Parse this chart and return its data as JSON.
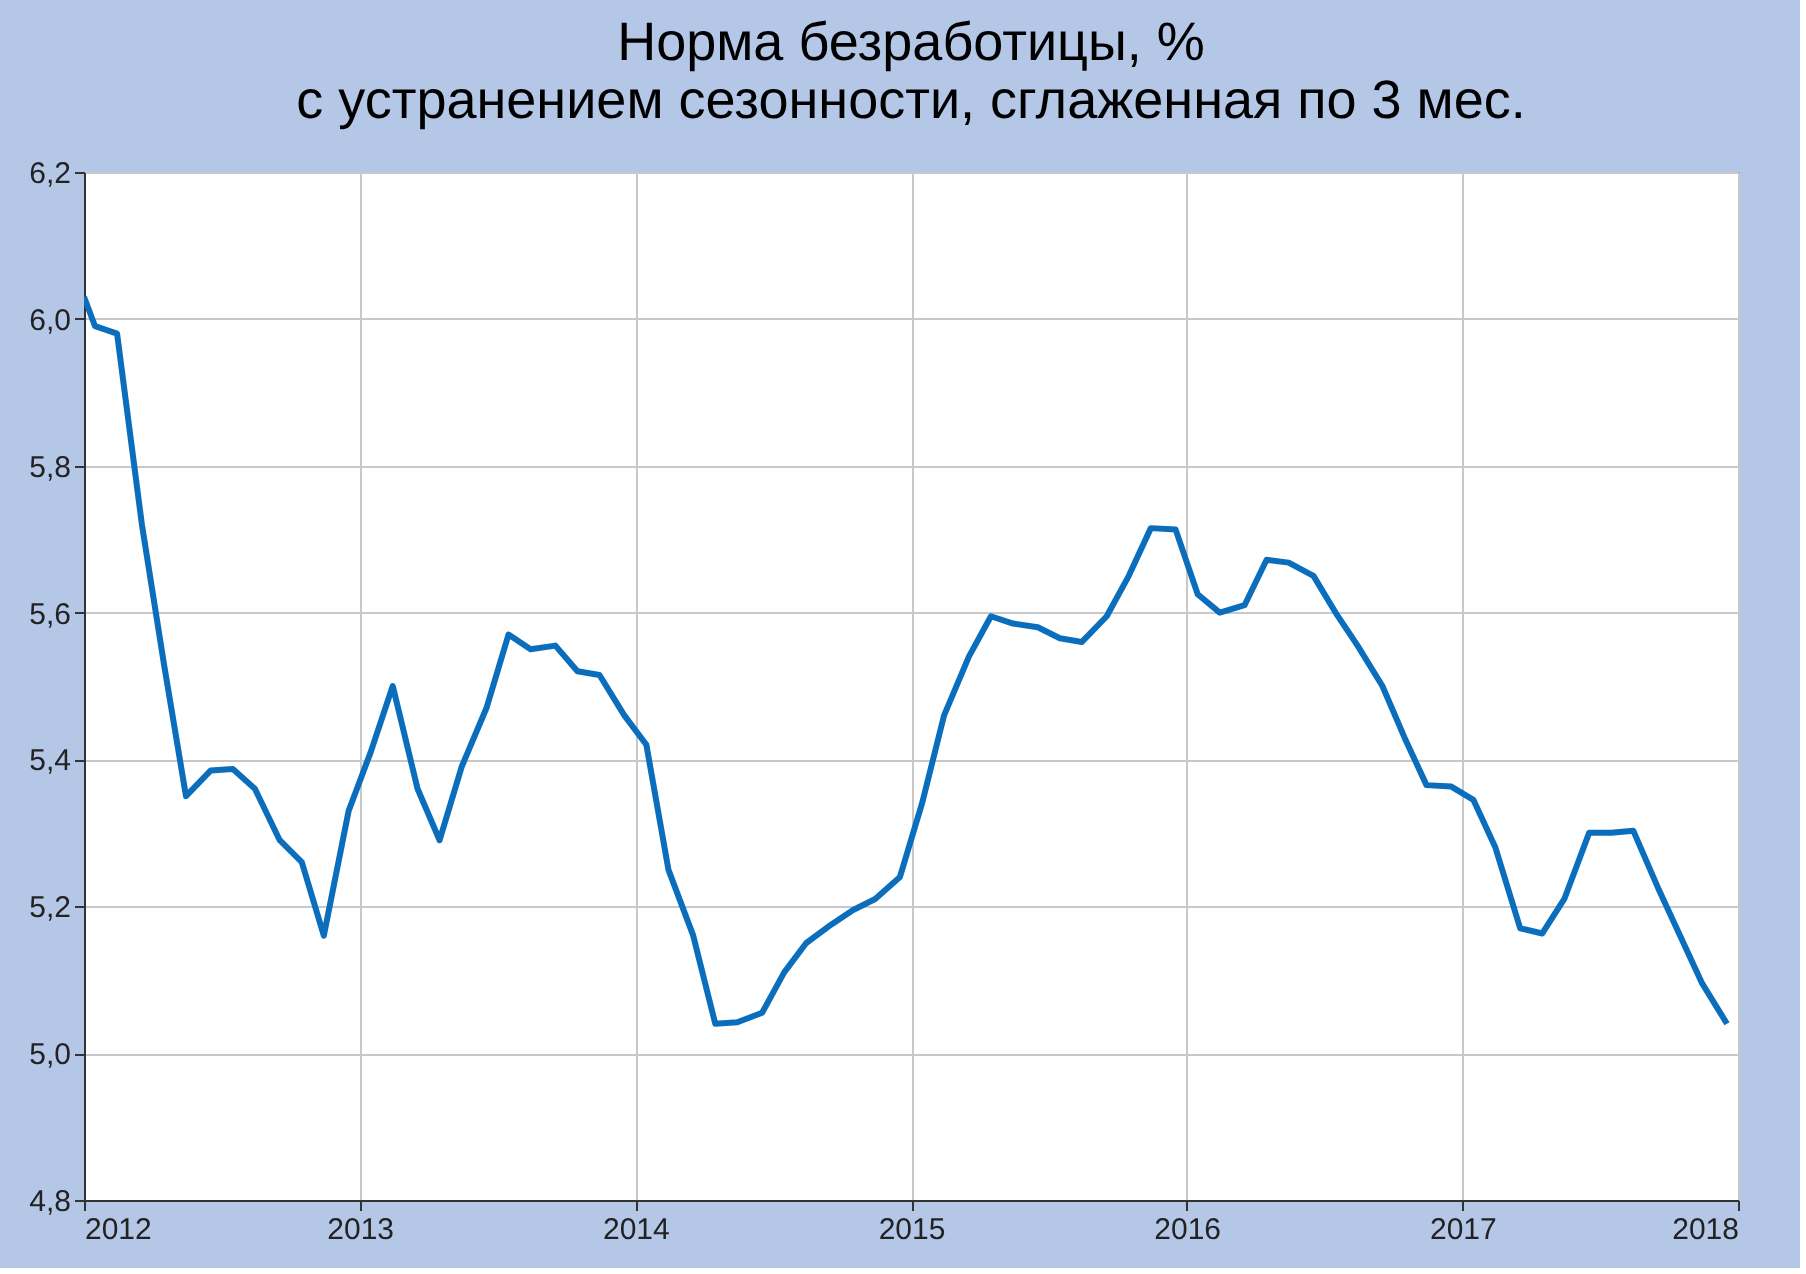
{
  "chart_data": {
    "type": "line",
    "title": [
      "Норма безработицы, %",
      "с устранением сезонности, сглаженная по 3 мес."
    ],
    "x": [
      2012.0,
      2012.04,
      2012.12,
      2012.21,
      2012.29,
      2012.37,
      2012.46,
      2012.54,
      2012.62,
      2012.71,
      2012.79,
      2012.87,
      2012.96,
      2013.04,
      2013.12,
      2013.21,
      2013.29,
      2013.37,
      2013.46,
      2013.54,
      2013.62,
      2013.71,
      2013.79,
      2013.87,
      2013.96,
      2014.04,
      2014.12,
      2014.21,
      2014.29,
      2014.37,
      2014.46,
      2014.54,
      2014.62,
      2014.71,
      2014.79,
      2014.87,
      2014.96,
      2015.04,
      2015.12,
      2015.21,
      2015.29,
      2015.37,
      2015.46,
      2015.54,
      2015.62,
      2015.71,
      2015.79,
      2015.87,
      2015.96,
      2016.04,
      2016.12,
      2016.21,
      2016.29,
      2016.37,
      2016.46,
      2016.54,
      2016.62,
      2016.71,
      2016.79,
      2016.87,
      2016.96,
      2017.04,
      2017.12,
      2017.21,
      2017.29,
      2017.37,
      2017.46,
      2017.54,
      2017.62,
      2017.71,
      2017.79,
      2017.87,
      2017.96
    ],
    "series": [
      {
        "color": "#0a6ebd",
        "values": [
          6.03,
          5.99,
          5.98,
          5.72,
          5.53,
          5.35,
          5.385,
          5.387,
          5.36,
          5.29,
          5.26,
          5.16,
          5.33,
          5.41,
          5.5,
          5.36,
          5.29,
          5.39,
          5.47,
          5.57,
          5.55,
          5.555,
          5.52,
          5.515,
          5.46,
          5.42,
          5.25,
          5.16,
          5.04,
          5.042,
          5.055,
          5.11,
          5.15,
          5.175,
          5.195,
          5.21,
          5.24,
          5.34,
          5.46,
          5.54,
          5.595,
          5.585,
          5.58,
          5.565,
          5.56,
          5.595,
          5.65,
          5.715,
          5.713,
          5.625,
          5.6,
          5.61,
          5.672,
          5.668,
          5.65,
          5.6,
          5.555,
          5.5,
          5.43,
          5.365,
          5.363,
          5.345,
          5.28,
          5.17,
          5.163,
          5.21,
          5.3,
          5.3,
          5.303,
          5.225,
          5.16,
          5.095,
          5.04
        ]
      }
    ],
    "xlim": [
      2012,
      2018
    ],
    "xticks": [
      2012,
      2013,
      2014,
      2015,
      2016,
      2017,
      2018
    ],
    "ylim": [
      4.8,
      6.2
    ],
    "yticks": [
      {
        "value": 4.8,
        "label": "4,8"
      },
      {
        "value": 5.0,
        "label": "5,0"
      },
      {
        "value": 5.2,
        "label": "5,2"
      },
      {
        "value": 5.4,
        "label": "5,4"
      },
      {
        "value": 5.6,
        "label": "5,6"
      },
      {
        "value": 5.8,
        "label": "5,8"
      },
      {
        "value": 6.0,
        "label": "6,0"
      },
      {
        "value": 6.2,
        "label": "6,2"
      }
    ],
    "grid": true,
    "marker": "none",
    "line_style": "solid"
  }
}
